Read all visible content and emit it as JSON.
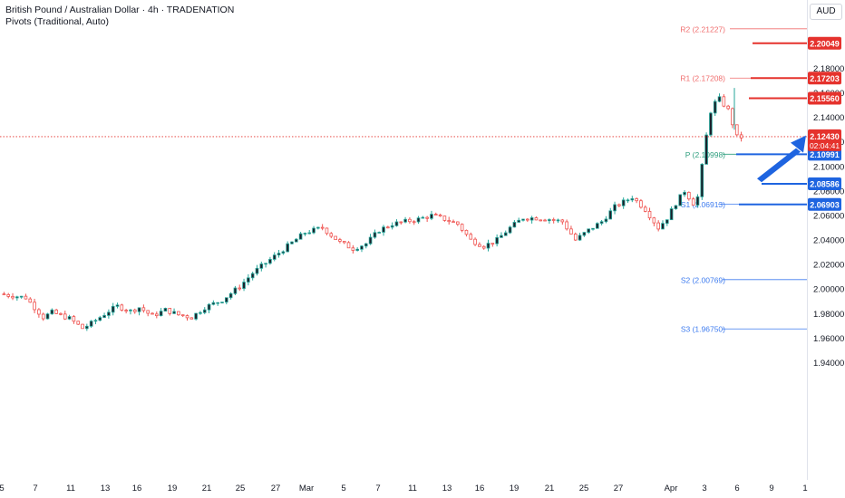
{
  "header": {
    "title": "British Pound / Australian Dollar · 4h · TRADENATION",
    "indicator": "Pivots (Traditional, Auto)"
  },
  "currency": "AUD",
  "colors": {
    "up": "#26a69a",
    "down": "#ef5350",
    "candle_body": "#131722",
    "red_line": "#e5322d",
    "blue_line": "#1e64e0",
    "pivot_p": "#2e9e7e",
    "r_pivot": "#f06e6e",
    "s_pivot": "#3d7bef",
    "axis_text": "#131722",
    "grid": "#ffffff"
  },
  "chart_data": {
    "type": "candlestick",
    "symbol": "GBPAUD",
    "timeframe": "4h",
    "y_ticks": [
      "2.18000",
      "2.16000",
      "2.14000",
      "2.12000",
      "2.10000",
      "2.08000",
      "2.06000",
      "2.04000",
      "2.02000",
      "2.00000",
      "1.98000",
      "1.96000",
      "1.94000"
    ],
    "x_ticks": [
      "5",
      "7",
      "11",
      "13",
      "16",
      "19",
      "21",
      "25",
      "27",
      "Mar",
      "5",
      "7",
      "11",
      "13",
      "16",
      "19",
      "21",
      "25",
      "27",
      "Apr",
      "3",
      "6",
      "9",
      "1"
    ],
    "ylim": [
      1.94,
      2.18
    ],
    "pivots": [
      {
        "label": "R2 (2.21227)",
        "value": 2.21227
      },
      {
        "label": "R1 (2.17208)",
        "value": 2.17208
      },
      {
        "label": "P (2.10998)",
        "value": 2.10998
      },
      {
        "label": "S1 (2.06913)",
        "value": 2.06913
      },
      {
        "label": "S2 (2.00769)",
        "value": 2.00769
      },
      {
        "label": "S3 (1.96750)",
        "value": 1.9675
      }
    ],
    "horizontal_levels": [
      {
        "value": 2.20049,
        "label": "2.20049",
        "color": "red"
      },
      {
        "value": 2.17203,
        "label": "2.17203",
        "color": "red"
      },
      {
        "value": 2.1556,
        "label": "2.15560",
        "color": "red"
      },
      {
        "value": 2.10991,
        "label": "2.10991",
        "color": "blue"
      },
      {
        "value": 2.08586,
        "label": "2.08586",
        "color": "blue"
      },
      {
        "value": 2.06903,
        "label": "2.06903",
        "color": "blue"
      }
    ],
    "last_price": {
      "value": 2.1243,
      "label": "2.12430",
      "countdown": "02:04:41"
    },
    "arrow": {
      "from": 2.0975,
      "to": 2.1245,
      "direction": "up"
    },
    "close_path": [
      [
        0,
        1.996
      ],
      [
        6,
        1.993
      ],
      [
        10,
        1.977
      ],
      [
        12,
        1.981
      ],
      [
        16,
        1.976
      ],
      [
        19,
        1.968
      ],
      [
        21,
        1.972
      ],
      [
        25,
        1.982
      ],
      [
        27,
        1.986
      ],
      [
        30,
        1.982
      ],
      [
        32,
        1.985
      ],
      [
        35,
        1.978
      ],
      [
        38,
        1.983
      ],
      [
        41,
        1.979
      ],
      [
        44,
        1.977
      ],
      [
        47,
        1.985
      ],
      [
        51,
        1.991
      ],
      [
        55,
        2.002
      ],
      [
        58,
        2.013
      ],
      [
        62,
        2.024
      ],
      [
        66,
        2.035
      ],
      [
        70,
        2.046
      ],
      [
        74,
        2.05
      ],
      [
        78,
        2.038
      ],
      [
        81,
        2.033
      ],
      [
        84,
        2.037
      ],
      [
        87,
        2.048
      ],
      [
        90,
        2.053
      ],
      [
        93,
        2.055
      ],
      [
        96,
        2.057
      ],
      [
        99,
        2.06
      ],
      [
        102,
        2.057
      ],
      [
        105,
        2.053
      ],
      [
        108,
        2.04
      ],
      [
        111,
        2.035
      ],
      [
        114,
        2.04
      ],
      [
        117,
        2.05
      ],
      [
        120,
        2.058
      ],
      [
        123,
        2.058
      ],
      [
        126,
        2.057
      ],
      [
        129,
        2.055
      ],
      [
        132,
        2.04
      ],
      [
        135,
        2.048
      ],
      [
        138,
        2.055
      ],
      [
        141,
        2.067
      ],
      [
        145,
        2.075
      ],
      [
        148,
        2.065
      ],
      [
        151,
        2.05
      ],
      [
        153,
        2.058
      ],
      [
        155,
        2.07
      ],
      [
        157,
        2.08
      ],
      [
        159,
        2.07
      ],
      [
        160,
        2.075
      ],
      [
        161,
        2.1
      ],
      [
        162,
        2.125
      ],
      [
        163,
        2.145
      ],
      [
        164,
        2.152
      ],
      [
        165,
        2.155
      ],
      [
        167,
        2.146
      ],
      [
        169,
        2.124
      ]
    ]
  }
}
